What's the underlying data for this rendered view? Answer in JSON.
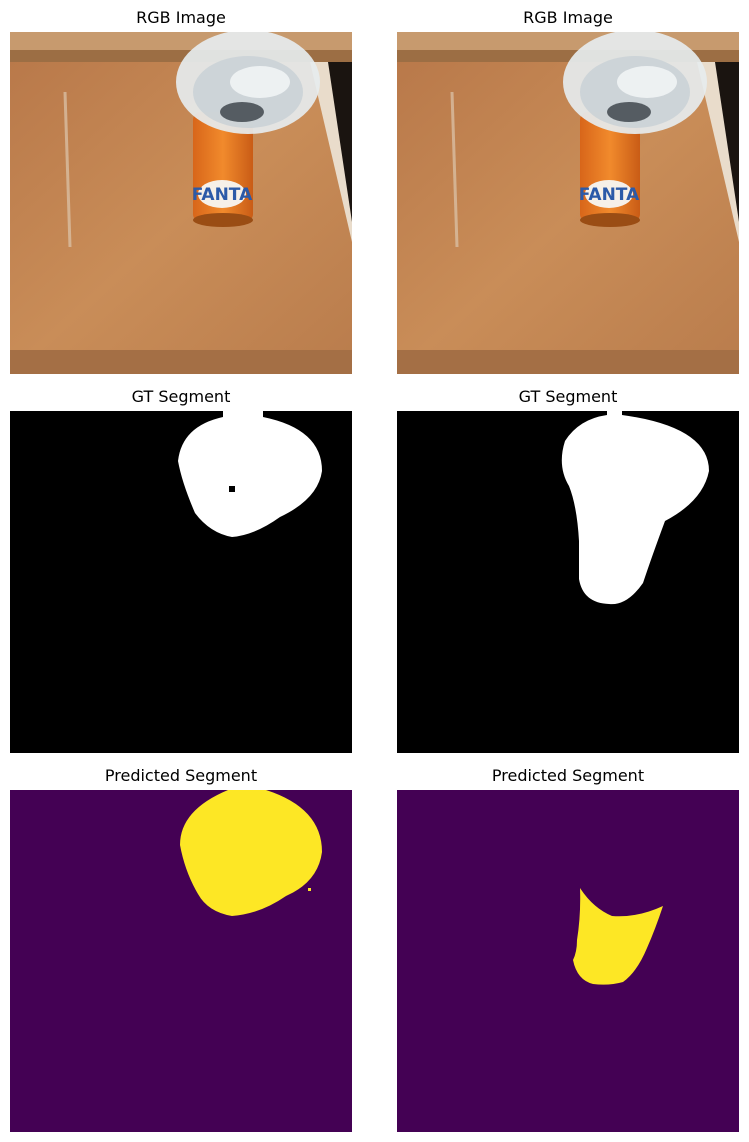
{
  "figure": {
    "panels": [
      {
        "id": "rgb-left",
        "title": "RGB Image",
        "kind": "rgb",
        "can_label": "FANTA"
      },
      {
        "id": "rgb-right",
        "title": "RGB Image",
        "kind": "rgb",
        "can_label": "FANTA"
      },
      {
        "id": "gt-left",
        "title": "GT Segment",
        "kind": "mask"
      },
      {
        "id": "gt-right",
        "title": "GT Segment",
        "kind": "mask"
      },
      {
        "id": "pred-left",
        "title": "Predicted Segment",
        "kind": "prediction"
      },
      {
        "id": "pred-right",
        "title": "Predicted Segment",
        "kind": "prediction"
      }
    ]
  },
  "colors": {
    "mask_background": "#000000",
    "mask_foreground": "#ffffff",
    "pred_background": "#440154",
    "pred_foreground": "#fde725",
    "table_wood": "#c48650",
    "can_orange": "#e9781f",
    "cup_plastic": "#dfe4e8"
  }
}
